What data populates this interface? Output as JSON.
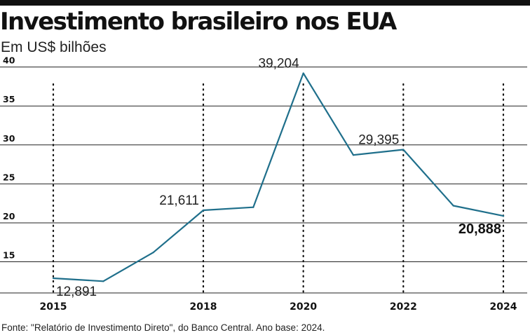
{
  "header": {
    "title": "Investimento brasileiro nos EUA",
    "subtitle": "Em US$ bilhões"
  },
  "footer": {
    "source": "Fonte: \"Relatório de Investimento Direto\", do Banco Central. Ano base: 2024."
  },
  "colors": {
    "line": "#1f6f8b",
    "grid": "#222222",
    "text": "#1a1a1a",
    "bar": "#111111"
  },
  "chart_data": {
    "type": "line",
    "title": "Investimento brasileiro nos EUA",
    "subtitle": "Em US$ bilhões",
    "xlabel": "",
    "ylabel": "",
    "xlim": [
      2015,
      2024
    ],
    "ylim": [
      11,
      41
    ],
    "x": [
      2015,
      2016,
      2017,
      2018,
      2019,
      2020,
      2021,
      2022,
      2023,
      2024
    ],
    "series": [
      {
        "values": [
          12.891,
          12.5,
          16.2,
          21.611,
          22.0,
          39.204,
          28.7,
          29.395,
          22.2,
          20.888
        ]
      }
    ],
    "y_ticks": [
      {
        "value": 15,
        "label": "15"
      },
      {
        "value": 20,
        "label": "20"
      },
      {
        "value": 25,
        "label": "25"
      },
      {
        "value": 30,
        "label": "30"
      },
      {
        "value": 35,
        "label": "35"
      },
      {
        "value": 40,
        "label": "40"
      }
    ],
    "x_ticks": [
      {
        "value": 2015,
        "label": "2015"
      },
      {
        "value": 2018,
        "label": "2018"
      },
      {
        "value": 2020,
        "label": "2020"
      },
      {
        "value": 2022,
        "label": "2022"
      },
      {
        "value": 2024,
        "label": "2024"
      }
    ],
    "vertical_guides": [
      2015,
      2018,
      2020,
      2022,
      2024
    ],
    "data_labels": [
      {
        "x": 2015,
        "y": 12.891,
        "text": "12,891",
        "bold": false,
        "anchor": "start",
        "position": "below"
      },
      {
        "x": 2018,
        "y": 21.611,
        "text": "21,611",
        "bold": false,
        "anchor": "end",
        "position": "above"
      },
      {
        "x": 2020,
        "y": 39.204,
        "text": "39,204",
        "bold": false,
        "anchor": "end",
        "position": "above"
      },
      {
        "x": 2022,
        "y": 29.395,
        "text": "29,395",
        "bold": false,
        "anchor": "end",
        "position": "above"
      },
      {
        "x": 2024,
        "y": 20.888,
        "text": "20,888",
        "bold": true,
        "anchor": "end",
        "position": "below"
      }
    ],
    "grid": true,
    "legend": "none"
  }
}
